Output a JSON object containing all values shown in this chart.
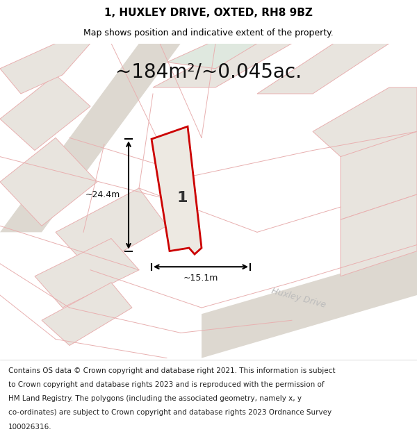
{
  "title": "1, HUXLEY DRIVE, OXTED, RH8 9BZ",
  "subtitle": "Map shows position and indicative extent of the property.",
  "area_text": "~184m²/~0.045ac.",
  "label_number": "1",
  "dim_height": "~24.4m",
  "dim_width": "~15.1m",
  "road_label": "Huxley Drive",
  "footer_lines": [
    "Contains OS data © Crown copyright and database right 2021. This information is subject",
    "to Crown copyright and database rights 2023 and is reproduced with the permission of",
    "HM Land Registry. The polygons (including the associated geometry, namely x, y",
    "co-ordinates) are subject to Crown copyright and database rights 2023 Ordnance Survey",
    "100026316."
  ],
  "map_bg": "#eeebe5",
  "plot_fill": "#ede9e2",
  "plot_border": "#cc0000",
  "light_pink": "#e8b0b0",
  "road_fill": "#ddd8d0",
  "parcel_fill": "#e8e4de",
  "green_fill": "#dfe8df",
  "title_fontsize": 11,
  "subtitle_fontsize": 9,
  "area_fontsize": 20,
  "footer_fontsize": 7.5
}
